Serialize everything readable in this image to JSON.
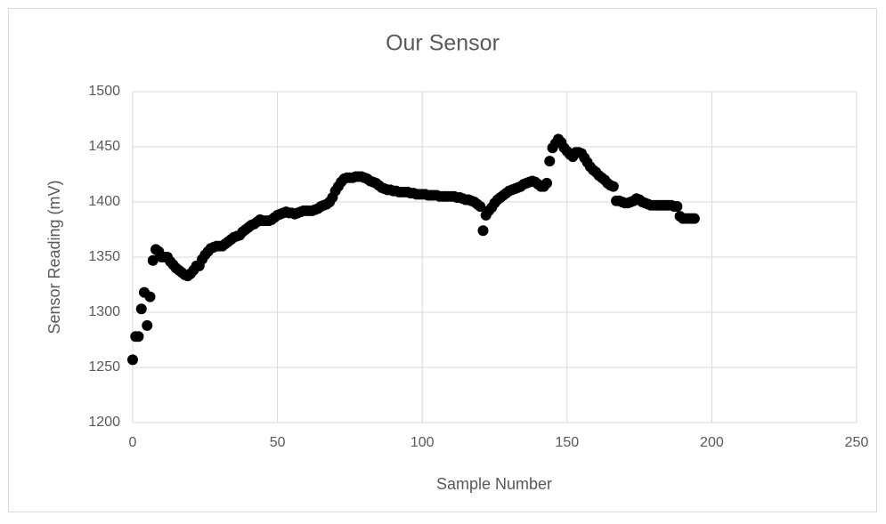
{
  "chart_data": {
    "type": "scatter",
    "title": "Our Sensor",
    "x_label": "Sample Number",
    "y_label": "Sensor Reading (mV)",
    "color": "#000000",
    "grid": true,
    "xlim": [
      0,
      250
    ],
    "xticks": [
      0,
      50,
      100,
      150,
      200,
      250
    ],
    "ylim": [
      1200,
      1500
    ],
    "yticks": [
      1200,
      1250,
      1300,
      1350,
      1400,
      1450,
      1500
    ],
    "x": [
      0,
      1,
      2,
      3,
      4,
      5,
      6,
      7,
      8,
      9,
      10,
      11,
      12,
      13,
      14,
      15,
      16,
      17,
      18,
      19,
      20,
      21,
      22,
      23,
      24,
      25,
      26,
      27,
      28,
      29,
      30,
      31,
      32,
      33,
      34,
      35,
      36,
      37,
      38,
      39,
      40,
      41,
      42,
      43,
      44,
      45,
      46,
      47,
      48,
      49,
      50,
      51,
      52,
      53,
      54,
      55,
      56,
      57,
      58,
      59,
      60,
      61,
      62,
      63,
      64,
      65,
      66,
      67,
      68,
      69,
      70,
      71,
      72,
      73,
      74,
      75,
      76,
      77,
      78,
      79,
      80,
      81,
      82,
      83,
      84,
      85,
      86,
      87,
      88,
      89,
      90,
      91,
      92,
      93,
      94,
      95,
      96,
      97,
      98,
      99,
      100,
      101,
      102,
      103,
      104,
      105,
      106,
      107,
      108,
      109,
      110,
      111,
      112,
      113,
      114,
      115,
      116,
      117,
      118,
      119,
      120,
      121,
      122,
      123,
      124,
      125,
      126,
      127,
      128,
      129,
      130,
      131,
      132,
      133,
      134,
      135,
      136,
      137,
      138,
      139,
      140,
      141,
      142,
      143,
      144,
      145,
      146,
      147,
      148,
      149,
      150,
      151,
      152,
      153,
      154,
      155,
      156,
      157,
      158,
      159,
      160,
      161,
      162,
      163,
      164,
      165,
      166,
      167,
      168,
      169,
      170,
      171,
      172,
      173,
      174,
      175,
      176,
      177,
      178,
      179,
      180,
      181,
      182,
      183,
      184,
      185,
      186,
      187,
      188,
      189,
      190,
      191,
      192,
      193,
      194
    ],
    "values": [
      1257,
      1278,
      1278,
      1303,
      1318,
      1288,
      1314,
      1347,
      1357,
      1355,
      1350,
      1350,
      1350,
      1346,
      1343,
      1340,
      1338,
      1336,
      1334,
      1333,
      1335,
      1338,
      1342,
      1342,
      1348,
      1352,
      1355,
      1358,
      1359,
      1360,
      1360,
      1360,
      1362,
      1364,
      1366,
      1368,
      1369,
      1370,
      1373,
      1375,
      1377,
      1379,
      1380,
      1382,
      1384,
      1383,
      1383,
      1383,
      1384,
      1386,
      1388,
      1389,
      1390,
      1391,
      1390,
      1390,
      1389,
      1390,
      1391,
      1392,
      1392,
      1392,
      1392,
      1393,
      1394,
      1396,
      1397,
      1398,
      1400,
      1404,
      1410,
      1414,
      1418,
      1421,
      1422,
      1422,
      1422,
      1423,
      1423,
      1423,
      1422,
      1421,
      1419,
      1418,
      1417,
      1415,
      1413,
      1412,
      1411,
      1411,
      1410,
      1410,
      1409,
      1409,
      1409,
      1409,
      1408,
      1408,
      1407,
      1407,
      1407,
      1407,
      1406,
      1406,
      1406,
      1406,
      1405,
      1405,
      1405,
      1405,
      1405,
      1405,
      1404,
      1404,
      1403,
      1402,
      1402,
      1401,
      1400,
      1398,
      1396,
      1374,
      1388,
      1392,
      1395,
      1399,
      1402,
      1404,
      1406,
      1408,
      1410,
      1411,
      1412,
      1413,
      1414,
      1416,
      1417,
      1418,
      1419,
      1418,
      1416,
      1414,
      1414,
      1417,
      1437,
      1449,
      1453,
      1457,
      1454,
      1449,
      1446,
      1443,
      1441,
      1445,
      1445,
      1444,
      1440,
      1436,
      1432,
      1429,
      1427,
      1424,
      1422,
      1420,
      1417,
      1415,
      1414,
      1401,
      1401,
      1400,
      1399,
      1399,
      1400,
      1401,
      1403,
      1402,
      1400,
      1399,
      1398,
      1397,
      1397,
      1397,
      1397,
      1397,
      1397,
      1397,
      1397,
      1396,
      1396,
      1387,
      1385,
      1385,
      1385,
      1385,
      1385
    ]
  }
}
